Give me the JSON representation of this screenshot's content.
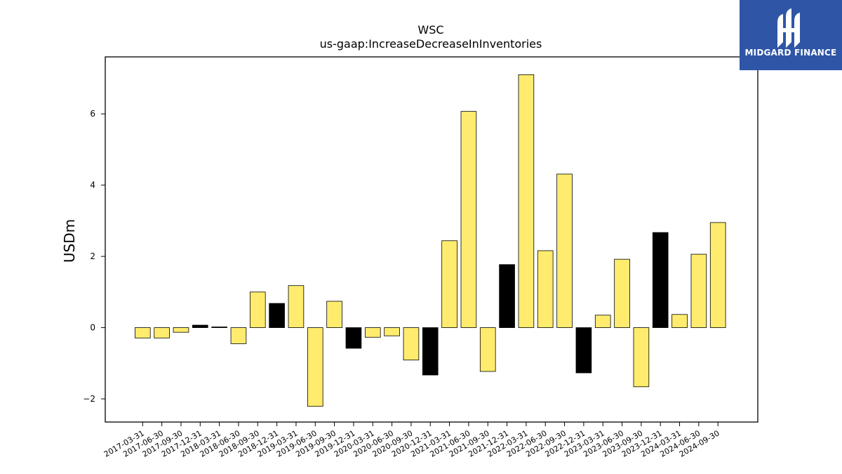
{
  "brand": {
    "name": "MIDGARD FINANCE",
    "icon": "midgard-logo-icon",
    "color": "#2f56a6"
  },
  "chart_data": {
    "type": "bar",
    "title": "WSC",
    "subtitle": "us-gaap:IncreaseDecreaseInInventories",
    "xlabel": "",
    "ylabel": "USDm",
    "ylim": [
      -2.65,
      7.6
    ],
    "yticks": [
      -2,
      0,
      2,
      4,
      6
    ],
    "grid": false,
    "colors": {
      "yellow": "#ffec6e",
      "black": "#000000"
    },
    "categories": [
      "2017-03-31",
      "2017-06-30",
      "2017-09-30",
      "2017-12-31",
      "2018-03-31",
      "2018-06-30",
      "2018-09-30",
      "2018-12-31",
      "2019-03-31",
      "2019-06-30",
      "2019-09-30",
      "2019-12-31",
      "2020-03-31",
      "2020-06-30",
      "2020-09-30",
      "2020-12-31",
      "2021-03-31",
      "2021-06-30",
      "2021-09-30",
      "2021-12-31",
      "2022-03-31",
      "2022-06-30",
      "2022-09-30",
      "2022-12-31",
      "2023-03-31",
      "2023-06-30",
      "2023-09-30",
      "2023-12-31",
      "2024-03-31",
      "2024-06-30",
      "2024-09-30"
    ],
    "values": [
      -0.29,
      -0.29,
      -0.13,
      0.07,
      0.02,
      -0.45,
      1.0,
      0.68,
      1.18,
      -2.21,
      0.74,
      -0.58,
      -0.27,
      -0.23,
      -0.91,
      -1.33,
      2.44,
      6.07,
      -1.23,
      1.77,
      7.1,
      2.16,
      4.31,
      -1.27,
      0.35,
      1.92,
      -1.66,
      2.67,
      0.37,
      2.06,
      2.95
    ],
    "bar_colors": [
      "yellow",
      "yellow",
      "yellow",
      "black",
      "black",
      "yellow",
      "yellow",
      "black",
      "yellow",
      "yellow",
      "yellow",
      "black",
      "yellow",
      "yellow",
      "yellow",
      "black",
      "yellow",
      "yellow",
      "yellow",
      "black",
      "yellow",
      "yellow",
      "yellow",
      "black",
      "yellow",
      "yellow",
      "yellow",
      "black",
      "yellow",
      "yellow",
      "yellow"
    ]
  }
}
